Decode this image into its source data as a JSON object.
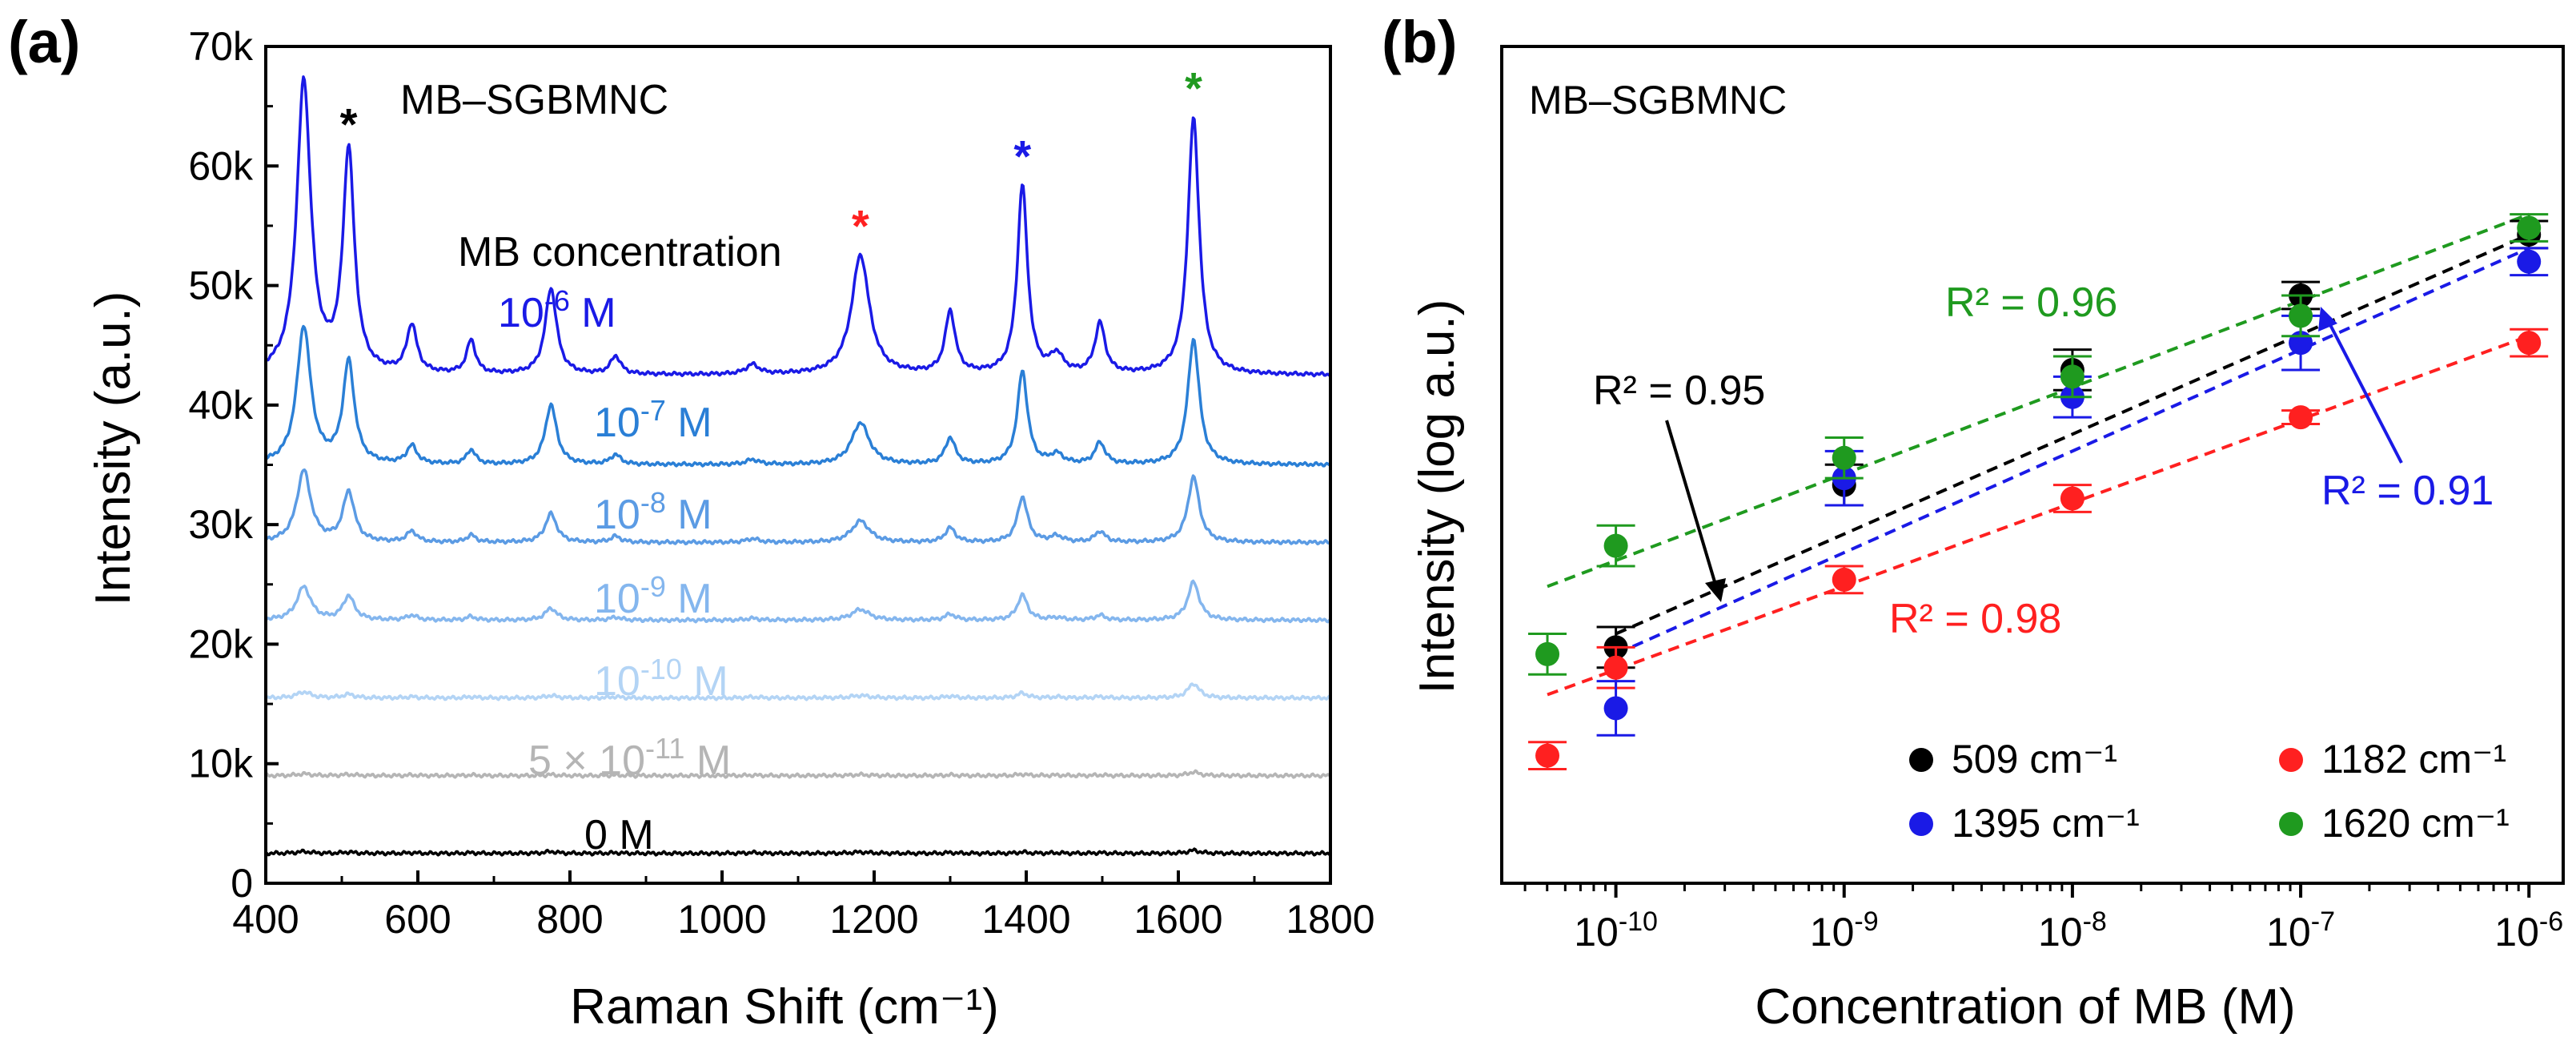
{
  "panel_a": {
    "panel_label": "(a)",
    "legend_title": "MB–SGBMNC",
    "concentration_header": "MB concentration",
    "curve_labels": [
      {
        "text": "10",
        "sup": "-6",
        "unit": " M",
        "color": "#1a1ae6"
      },
      {
        "text": "10",
        "sup": "-7",
        "unit": " M",
        "color": "#2a7fd6"
      },
      {
        "text": "10",
        "sup": "-8",
        "unit": " M",
        "color": "#5b9be4"
      },
      {
        "text": "10",
        "sup": "-9",
        "unit": " M",
        "color": "#84b6ee"
      },
      {
        "text": "10",
        "sup": "-10",
        "unit": " M",
        "color": "#b3d4f5"
      },
      {
        "text": "5 × 10",
        "sup": "-11",
        "unit": " M",
        "color": "#b5b5b5"
      },
      {
        "text": "0 M",
        "sup": "",
        "unit": "",
        "color": "#000000"
      }
    ],
    "peak_markers": [
      {
        "shift": 509,
        "symbol": "*",
        "color": "#000000"
      },
      {
        "shift": 1182,
        "symbol": "*",
        "color": "#ff2020"
      },
      {
        "shift": 1395,
        "symbol": "*",
        "color": "#1a1ae6"
      },
      {
        "shift": 1620,
        "symbol": "*",
        "color": "#1f9a1f"
      }
    ]
  },
  "panel_b": {
    "panel_label": "(b)",
    "legend_title": "MB–SGBMNC",
    "r2_labels": [
      {
        "text": "R² = 0.96",
        "color": "#1f9a1f"
      },
      {
        "text": "R² = 0.95",
        "color": "#000000"
      },
      {
        "text": "R² = 0.91",
        "color": "#1a1ae6"
      },
      {
        "text": "R² = 0.98",
        "color": "#ff2020"
      }
    ],
    "legend": [
      {
        "label": "509 cm⁻¹",
        "color": "#000000"
      },
      {
        "label": "1182 cm⁻¹",
        "color": "#ff2020"
      },
      {
        "label": "1395 cm⁻¹",
        "color": "#1a1ae6"
      },
      {
        "label": "1620 cm⁻¹",
        "color": "#1f9a1f"
      }
    ]
  },
  "chart_data": [
    {
      "type": "line",
      "title": "MB–SGBMNC",
      "xlabel": "Raman Shift (cm⁻¹)",
      "ylabel": "Intensity (a.u.)",
      "xlim": [
        400,
        1800
      ],
      "ylim": [
        0,
        70000
      ],
      "x_ticks": [
        "400",
        "600",
        "800",
        "1000",
        "1200",
        "1400",
        "1600",
        "1800"
      ],
      "y_ticks": [
        "0",
        "10k",
        "20k",
        "30k",
        "40k",
        "50k",
        "60k",
        "70k"
      ],
      "peak_positions": [
        450,
        509,
        592,
        670,
        775,
        860,
        1040,
        1182,
        1300,
        1395,
        1440,
        1497,
        1620
      ],
      "peak_widths": [
        11,
        9,
        8,
        7,
        9,
        8,
        10,
        14,
        8,
        8,
        10,
        8,
        9
      ],
      "series": [
        {
          "name": "10⁻⁶ M",
          "color": "#1a1ae6",
          "baseline": 42500,
          "heights": [
            24500,
            18500,
            4000,
            2800,
            7200,
            1500,
            800,
            10000,
            5200,
            15800,
            1500,
            4200,
            21500
          ]
        },
        {
          "name": "10⁻⁷ M",
          "color": "#2a7fd6",
          "baseline": 35000,
          "heights": [
            11500,
            8500,
            1500,
            1200,
            5000,
            800,
            400,
            3500,
            2200,
            7800,
            800,
            1800,
            10500
          ]
        },
        {
          "name": "10⁻⁸ M",
          "color": "#5b9be4",
          "baseline": 28500,
          "heights": [
            6000,
            4200,
            900,
            600,
            2400,
            500,
            300,
            1800,
            1200,
            3800,
            500,
            900,
            5500
          ]
        },
        {
          "name": "10⁻⁹ M",
          "color": "#84b6ee",
          "baseline": 22000,
          "heights": [
            2800,
            2000,
            400,
            300,
            1000,
            250,
            150,
            900,
            500,
            2100,
            200,
            400,
            3200
          ]
        },
        {
          "name": "10⁻¹⁰ M",
          "color": "#b3d4f5",
          "baseline": 15500,
          "heights": [
            500,
            300,
            100,
            100,
            200,
            100,
            80,
            200,
            150,
            400,
            80,
            100,
            1200
          ]
        },
        {
          "name": "5 × 10⁻¹¹ M",
          "color": "#b5b5b5",
          "baseline": 9000,
          "heights": [
            150,
            100,
            50,
            50,
            80,
            50,
            40,
            80,
            60,
            120,
            40,
            50,
            300
          ]
        },
        {
          "name": "0 M",
          "color": "#000000",
          "baseline": 2500,
          "heights": [
            150,
            100,
            50,
            50,
            150,
            50,
            60,
            100,
            60,
            100,
            40,
            50,
            250
          ]
        }
      ]
    },
    {
      "type": "scatter",
      "title": "MB–SGBMNC",
      "xlabel": "Concentration of MB (M)",
      "ylabel": "Intensity (log a.u.)",
      "x_scale": "log",
      "xlim": [
        -10.5,
        -5.85
      ],
      "ylim": [
        0,
        1
      ],
      "x_ticks": [
        {
          "base": "10",
          "exp": "-10"
        },
        {
          "base": "10",
          "exp": "-9"
        },
        {
          "base": "10",
          "exp": "-8"
        },
        {
          "base": "10",
          "exp": "-7"
        },
        {
          "base": "10",
          "exp": "-6"
        }
      ],
      "series": [
        {
          "name": "509 cm⁻¹",
          "color": "#000000",
          "log_x": [
            -10,
            -9,
            -8,
            -7,
            -6
          ],
          "y": [
            0.28,
            0.52,
            0.69,
            0.8,
            0.89
          ],
          "err": [
            0.03,
            0.03,
            0.03,
            0.02,
            0.02
          ],
          "fit": [
            [
              -10,
              0.3
            ],
            [
              -6,
              0.89
            ]
          ]
        },
        {
          "name": "1182 cm⁻¹",
          "color": "#ff2020",
          "log_x": [
            -10.3,
            -10,
            -9,
            -8,
            -7,
            -6
          ],
          "y": [
            0.12,
            0.25,
            0.38,
            0.5,
            0.62,
            0.73
          ],
          "err": [
            0.02,
            0.03,
            0.02,
            0.02,
            0.01,
            0.02
          ],
          "fit": [
            [
              -10.3,
              0.21
            ],
            [
              -6,
              0.74
            ]
          ]
        },
        {
          "name": "1395 cm⁻¹",
          "color": "#1a1ae6",
          "log_x": [
            -10,
            -9,
            -8,
            -7,
            -6
          ],
          "y": [
            0.19,
            0.53,
            0.65,
            0.73,
            0.85
          ],
          "err": [
            0.04,
            0.04,
            0.03,
            0.04,
            0.02
          ],
          "fit": [
            [
              -10,
              0.27
            ],
            [
              -6,
              0.87
            ]
          ]
        },
        {
          "name": "1620 cm⁻¹",
          "color": "#1f9a1f",
          "log_x": [
            -10.3,
            -10,
            -9,
            -8,
            -7,
            -6
          ],
          "y": [
            0.27,
            0.43,
            0.56,
            0.68,
            0.77,
            0.9
          ],
          "err": [
            0.03,
            0.03,
            0.03,
            0.03,
            0.03,
            0.02
          ],
          "fit": [
            [
              -10.3,
              0.37
            ],
            [
              -6,
              0.92
            ]
          ]
        }
      ]
    }
  ]
}
